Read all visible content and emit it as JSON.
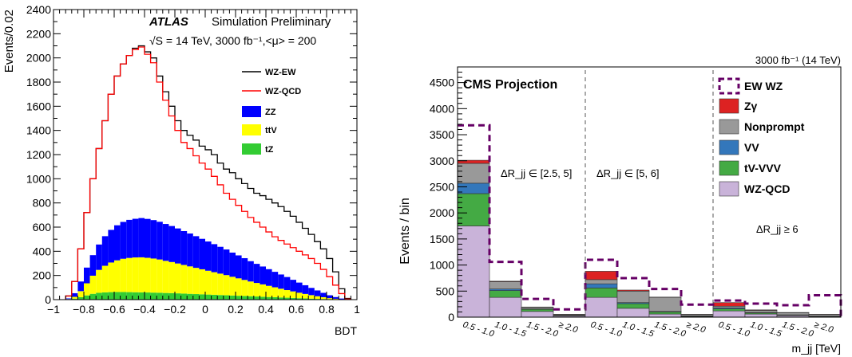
{
  "chart_data": [
    {
      "type": "area",
      "panel": "left",
      "atlas_label": "ATLAS",
      "status_label": "Simulation Preliminary",
      "energy_label": "√S = 14 TeV, 3000 fb⁻¹,<μ> = 200",
      "xlabel": "BDT",
      "ylabel": "Events/0.02",
      "xlim": [
        -1,
        1
      ],
      "ylim": [
        0,
        2400
      ],
      "xticks": [
        "−1",
        "−0.8",
        "−0.6",
        "−0.4",
        "−0.2",
        "0",
        "0.2",
        "0.4",
        "0.6",
        "0.8",
        "1"
      ],
      "yticks": [
        "0",
        "200",
        "400",
        "600",
        "800",
        "1000",
        "1200",
        "1400",
        "1600",
        "1800",
        "2000",
        "2200",
        "2400"
      ],
      "legend": [
        {
          "label": "WZ-EW",
          "color": "#000000",
          "style": "line"
        },
        {
          "label": "WZ-QCD",
          "color": "#ff0000",
          "style": "line"
        },
        {
          "label": "ZZ",
          "color": "#0000ff",
          "style": "fill"
        },
        {
          "label": "ttV",
          "color": "#ffff00",
          "style": "fill"
        },
        {
          "label": "tZ",
          "color": "#33cc33",
          "style": "fill"
        }
      ],
      "x": [
        -0.9,
        -0.86,
        -0.82,
        -0.78,
        -0.74,
        -0.7,
        -0.66,
        -0.62,
        -0.58,
        -0.54,
        -0.5,
        -0.46,
        -0.42,
        -0.38,
        -0.34,
        -0.3,
        -0.26,
        -0.22,
        -0.18,
        -0.14,
        -0.1,
        -0.06,
        -0.02,
        0.02,
        0.06,
        0.1,
        0.14,
        0.18,
        0.22,
        0.26,
        0.3,
        0.34,
        0.38,
        0.42,
        0.46,
        0.5,
        0.54,
        0.58,
        0.62,
        0.66,
        0.7,
        0.74,
        0.78,
        0.82,
        0.86,
        0.9,
        0.94
      ],
      "series": [
        {
          "name": "WZ-EW",
          "values": [
            30,
            150,
            420,
            720,
            1000,
            1250,
            1480,
            1700,
            1850,
            1950,
            2020,
            2080,
            2100,
            2050,
            2000,
            1850,
            1720,
            1600,
            1480,
            1400,
            1360,
            1320,
            1270,
            1240,
            1200,
            1130,
            1080,
            1050,
            1000,
            960,
            920,
            880,
            860,
            830,
            800,
            770,
            730,
            690,
            640,
            590,
            540,
            480,
            420,
            340,
            230,
            90,
            10
          ]
        },
        {
          "name": "WZ-QCD",
          "values": [
            30,
            150,
            420,
            720,
            1000,
            1250,
            1480,
            1700,
            1850,
            1950,
            2020,
            2070,
            2090,
            2030,
            1960,
            1800,
            1650,
            1520,
            1400,
            1300,
            1250,
            1190,
            1130,
            1080,
            1020,
            950,
            880,
            830,
            780,
            730,
            680,
            640,
            600,
            560,
            520,
            490,
            460,
            430,
            400,
            370,
            340,
            300,
            250,
            190,
            120,
            50,
            5
          ]
        },
        {
          "name": "ZZ",
          "values": [
            5,
            30,
            80,
            130,
            170,
            210,
            245,
            270,
            290,
            305,
            315,
            320,
            325,
            322,
            318,
            312,
            305,
            298,
            290,
            280,
            272,
            262,
            252,
            242,
            232,
            222,
            212,
            200,
            190,
            180,
            168,
            158,
            148,
            138,
            128,
            118,
            108,
            96,
            84,
            72,
            60,
            48,
            36,
            24,
            14,
            6,
            1
          ]
        },
        {
          "name": "ttV",
          "values": [
            3,
            15,
            50,
            100,
            150,
            190,
            220,
            245,
            262,
            275,
            283,
            288,
            290,
            287,
            282,
            275,
            266,
            257,
            247,
            237,
            227,
            217,
            207,
            197,
            187,
            177,
            167,
            155,
            144,
            133,
            122,
            112,
            102,
            92,
            82,
            72,
            63,
            54,
            45,
            37,
            29,
            22,
            15,
            9,
            5,
            2,
            0
          ]
        },
        {
          "name": "tZ",
          "values": [
            2,
            8,
            20,
            35,
            48,
            56,
            60,
            62,
            63,
            63,
            62,
            61,
            60,
            59,
            58,
            57,
            55,
            54,
            52,
            50,
            48,
            46,
            44,
            42,
            40,
            38,
            36,
            34,
            32,
            30,
            28,
            26,
            24,
            22,
            20,
            18,
            16,
            14,
            12,
            10,
            8,
            6,
            5,
            3,
            2,
            1,
            0
          ]
        }
      ]
    },
    {
      "type": "bar",
      "panel": "right",
      "title_label": "CMS Projection",
      "lumi_label": "3000 fb⁻¹ (14 TeV)",
      "xlabel": "m_jj [TeV]",
      "ylabel": "Events / bin",
      "ylim": [
        0,
        4800
      ],
      "yticks": [
        "0",
        "500",
        "1000",
        "1500",
        "2000",
        "2500",
        "3000",
        "3500",
        "4000",
        "4500"
      ],
      "region_labels": [
        "ΔR_jj ∈ [2.5, 5]",
        "ΔR_jj ∈ [5, 6]",
        "ΔR_jj ≥ 6"
      ],
      "categories": [
        "0.5 - 1.0",
        "1.0 - 1.5",
        "1.5 - 2.0",
        "≥ 2.0",
        "0.5 - 1.0",
        "1.0 - 1.5",
        "1.5 - 2.0",
        "≥ 2.0",
        "0.5 - 1.0",
        "1.0 - 1.5",
        "1.5 - 2.0",
        "≥ 2.0"
      ],
      "legend": [
        {
          "label": "EW WZ",
          "color": "#660066",
          "style": "dashed"
        },
        {
          "label": "Zγ",
          "color": "#dd2222",
          "style": "fill"
        },
        {
          "label": "Nonprompt",
          "color": "#999999",
          "style": "fill"
        },
        {
          "label": "VV",
          "color": "#3377bb",
          "style": "fill"
        },
        {
          "label": "tV-VVV",
          "color": "#44aa44",
          "style": "fill"
        },
        {
          "label": "WZ-QCD",
          "color": "#c9b3d9",
          "style": "fill"
        }
      ],
      "series": [
        {
          "name": "WZ-QCD",
          "values": [
            1750,
            380,
            110,
            20,
            380,
            170,
            60,
            10,
            120,
            60,
            30,
            10
          ]
        },
        {
          "name": "tV-VVV",
          "values": [
            620,
            130,
            40,
            10,
            180,
            90,
            40,
            10,
            40,
            20,
            10,
            5
          ]
        },
        {
          "name": "VV",
          "values": [
            200,
            30,
            10,
            5,
            80,
            20,
            10,
            5,
            20,
            10,
            5,
            5
          ]
        },
        {
          "name": "Nonprompt",
          "values": [
            380,
            140,
            30,
            15,
            80,
            220,
            270,
            25,
            30,
            40,
            40,
            30
          ]
        },
        {
          "name": "Zγ",
          "values": [
            60,
            10,
            5,
            5,
            160,
            20,
            5,
            5,
            70,
            10,
            5,
            5
          ]
        },
        {
          "name": "EW WZ",
          "values": [
            3680,
            1060,
            350,
            150,
            1100,
            750,
            540,
            240,
            320,
            260,
            230,
            420
          ]
        }
      ]
    }
  ]
}
